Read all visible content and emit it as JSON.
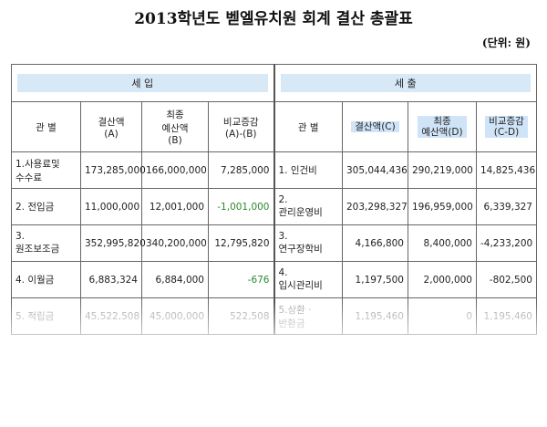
{
  "header": {
    "title": "2013학년도 벧엘유치원 회계 결산 총괄표",
    "unit": "(단위: 원)"
  },
  "table": {
    "sections": [
      "세      입",
      "세      출"
    ],
    "columns": [
      "관 별",
      "결산액\n(A)",
      "최종\n예산액\n(B)",
      "비교증감\n(A)-(B)",
      "관 별",
      "결산액(C)",
      "최종\n예산액(D)",
      "비교증감\n(C-D)"
    ],
    "rows": [
      [
        "1.사용료및\n수수료",
        "173,285,000",
        "166,000,000",
        "7,285,000",
        "1. 인건비",
        "305,044,436",
        "290,219,000",
        "14,825,436"
      ],
      [
        "2. 전입금",
        "11,000,000",
        "12,001,000",
        "-1,001,000",
        "2.\n관리운영비",
        "203,298,327",
        "196,959,000",
        "6,339,327"
      ],
      [
        "3.\n원조보조금",
        "352,995,820",
        "340,200,000",
        "12,795,820",
        "3.\n연구장학비",
        "4,166,800",
        "8,400,000",
        "-4,233,200"
      ],
      [
        "4. 이월금",
        "6,883,324",
        "6,884,000",
        "-676",
        "4.\n입시관리비",
        "1,197,500",
        "2,000,000",
        "-802,500"
      ],
      [
        "5. 적립금",
        "45,522,508",
        "45,000,000",
        "522,508",
        "5.상환 ·\n반환금",
        "1,195,460",
        "0",
        "1,195,460"
      ]
    ]
  }
}
